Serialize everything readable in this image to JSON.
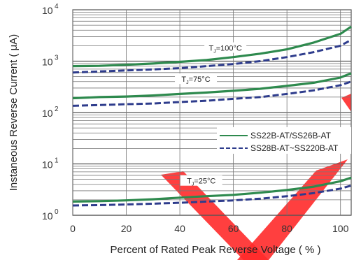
{
  "chart_data": {
    "type": "line",
    "xlabel": "Percent of Rated Peak Reverse Voltage ( % )",
    "ylabel": "Instaneous Reverse Current ( μA)",
    "xlim": [
      0,
      104
    ],
    "ylim": [
      1,
      10000
    ],
    "y_scale": "log",
    "grid": true,
    "x_ticks": [
      "0",
      "20",
      "40",
      "60",
      "80",
      "100"
    ],
    "y_ticks": [
      {
        "base": "10",
        "exp": "0"
      },
      {
        "base": "10",
        "exp": "1"
      },
      {
        "base": "10",
        "exp": "2"
      },
      {
        "base": "10",
        "exp": "3"
      },
      {
        "base": "10",
        "exp": "4"
      }
    ],
    "legend": {
      "position": "center-right",
      "entries": [
        {
          "label": "SS22B-AT/SS26B-AT",
          "color": "#2e8a4e",
          "dash": "solid"
        },
        {
          "label": "SS28B-AT~SS220B-AT",
          "color": "#2e3c8c",
          "dash": "dashed"
        }
      ]
    },
    "x": [
      0,
      10,
      20,
      30,
      40,
      50,
      60,
      70,
      80,
      90,
      100,
      104
    ],
    "series": [
      {
        "name": "SS22B-AT/SS26B-AT",
        "group": "TJ=100°C",
        "color": "#2e8a4e",
        "dash": "solid",
        "values": [
          800,
          810,
          850,
          900,
          970,
          1050,
          1200,
          1400,
          1700,
          2300,
          3400,
          4700
        ]
      },
      {
        "name": "SS28B-AT~SS220B-AT",
        "group": "TJ=100°C",
        "color": "#2e3c8c",
        "dash": "dashed",
        "values": [
          600,
          630,
          660,
          690,
          730,
          800,
          880,
          1000,
          1200,
          1500,
          2000,
          2600
        ]
      },
      {
        "name": "SS22B-AT/SS26B-AT",
        "group": "TJ=75°C",
        "color": "#2e8a4e",
        "dash": "solid",
        "values": [
          190,
          200,
          205,
          215,
          230,
          245,
          265,
          290,
          330,
          380,
          480,
          580
        ]
      },
      {
        "name": "SS28B-AT~SS220B-AT",
        "group": "TJ=75°C",
        "color": "#2e3c8c",
        "dash": "dashed",
        "values": [
          135,
          140,
          145,
          150,
          160,
          170,
          185,
          200,
          230,
          270,
          340,
          400
        ]
      },
      {
        "name": "SS22B-AT/SS26B-AT",
        "group": "TJ=25°C",
        "color": "#2e8a4e",
        "dash": "solid",
        "values": [
          1.85,
          1.88,
          1.95,
          2.05,
          2.2,
          2.35,
          2.5,
          2.75,
          3.1,
          3.6,
          4.6,
          5.4
        ]
      },
      {
        "name": "SS28B-AT~SS220B-AT",
        "group": "TJ=25°C",
        "color": "#2e3c8c",
        "dash": "dashed",
        "values": [
          1.55,
          1.58,
          1.62,
          1.68,
          1.75,
          1.85,
          1.95,
          2.1,
          2.35,
          2.7,
          3.3,
          3.8
        ]
      }
    ],
    "annotations": [
      {
        "sub_main": "T",
        "sub_script": "J",
        "rest": "=100°C",
        "x": 57,
        "y": 1700
      },
      {
        "sub_main": "T",
        "sub_script": "J",
        "rest": "=75°C",
        "x": 46,
        "y": 420
      },
      {
        "sub_main": "T",
        "sub_script": "J",
        "rest": "=25°C",
        "x": 48,
        "y": 4.4
      }
    ]
  },
  "watermark": {
    "color": "#ff2a2a"
  }
}
